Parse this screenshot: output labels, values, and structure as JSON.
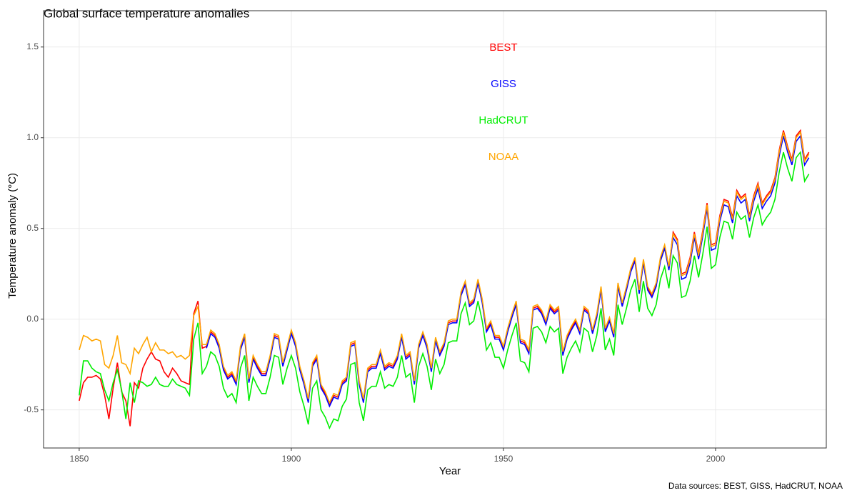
{
  "chart_data": {
    "type": "line",
    "title": "Global surface temperature anomalies",
    "x_label": "Year",
    "y_label": "Temperature anomaly (°C)",
    "caption": "Data sources: BEST, GISS, HadCRUT, NOAA",
    "grid": true,
    "xlim": [
      1841.6,
      2026.1
    ],
    "ylim": [
      -0.71,
      1.7
    ],
    "xticks": [
      1850,
      1900,
      1950,
      2000
    ],
    "yticks": [
      -0.5,
      {
        "value": 0,
        "label": "0.0"
      },
      0.5,
      {
        "value": 1,
        "label": "1.0"
      },
      1.5
    ],
    "x": [
      1850,
      1851,
      1852,
      1853,
      1854,
      1855,
      1856,
      1857,
      1858,
      1859,
      1860,
      1861,
      1862,
      1863,
      1864,
      1865,
      1866,
      1867,
      1868,
      1869,
      1870,
      1871,
      1872,
      1873,
      1874,
      1875,
      1876,
      1877,
      1878,
      1879,
      1880,
      1881,
      1882,
      1883,
      1884,
      1885,
      1886,
      1887,
      1888,
      1889,
      1890,
      1891,
      1892,
      1893,
      1894,
      1895,
      1896,
      1897,
      1898,
      1899,
      1900,
      1901,
      1902,
      1903,
      1904,
      1905,
      1906,
      1907,
      1908,
      1909,
      1910,
      1911,
      1912,
      1913,
      1914,
      1915,
      1916,
      1917,
      1918,
      1919,
      1920,
      1921,
      1922,
      1923,
      1924,
      1925,
      1926,
      1927,
      1928,
      1929,
      1930,
      1931,
      1932,
      1933,
      1934,
      1935,
      1936,
      1937,
      1938,
      1939,
      1940,
      1941,
      1942,
      1943,
      1944,
      1945,
      1946,
      1947,
      1948,
      1949,
      1950,
      1951,
      1952,
      1953,
      1954,
      1955,
      1956,
      1957,
      1958,
      1959,
      1960,
      1961,
      1962,
      1963,
      1964,
      1965,
      1966,
      1967,
      1968,
      1969,
      1970,
      1971,
      1972,
      1973,
      1974,
      1975,
      1976,
      1977,
      1978,
      1979,
      1980,
      1981,
      1982,
      1983,
      1984,
      1985,
      1986,
      1987,
      1988,
      1989,
      1990,
      1991,
      1992,
      1993,
      1994,
      1995,
      1996,
      1997,
      1998,
      1999,
      2000,
      2001,
      2002,
      2003,
      2004,
      2005,
      2006,
      2007,
      2008,
      2009,
      2010,
      2011,
      2012,
      2013,
      2014,
      2015,
      2016,
      2017,
      2018,
      2019,
      2020,
      2021,
      2022
    ],
    "series": [
      {
        "name": "BEST",
        "color": "#ff0000",
        "values": [
          -0.45,
          -0.35,
          -0.32,
          -0.32,
          -0.31,
          -0.33,
          -0.42,
          -0.55,
          -0.38,
          -0.24,
          -0.4,
          -0.45,
          -0.59,
          -0.35,
          -0.38,
          -0.27,
          -0.22,
          -0.18,
          -0.22,
          -0.23,
          -0.29,
          -0.32,
          -0.27,
          -0.3,
          -0.34,
          -0.35,
          -0.36,
          0.03,
          0.1,
          -0.16,
          -0.15,
          -0.07,
          -0.09,
          -0.15,
          -0.27,
          -0.32,
          -0.3,
          -0.35,
          -0.16,
          -0.09,
          -0.34,
          -0.21,
          -0.26,
          -0.3,
          -0.3,
          -0.21,
          -0.09,
          -0.1,
          -0.25,
          -0.16,
          -0.07,
          -0.14,
          -0.27,
          -0.35,
          -0.45,
          -0.25,
          -0.21,
          -0.37,
          -0.41,
          -0.47,
          -0.42,
          -0.43,
          -0.35,
          -0.33,
          -0.14,
          -0.13,
          -0.35,
          -0.45,
          -0.28,
          -0.26,
          -0.26,
          -0.18,
          -0.27,
          -0.25,
          -0.26,
          -0.21,
          -0.09,
          -0.21,
          -0.19,
          -0.35,
          -0.15,
          -0.08,
          -0.15,
          -0.28,
          -0.11,
          -0.19,
          -0.14,
          -0.02,
          -0.01,
          -0.01,
          0.14,
          0.2,
          0.08,
          0.1,
          0.21,
          0.1,
          -0.06,
          -0.02,
          -0.1,
          -0.1,
          -0.16,
          -0.06,
          0.02,
          0.09,
          -0.12,
          -0.13,
          -0.18,
          0.06,
          0.07,
          0.04,
          -0.02,
          0.07,
          0.04,
          0.06,
          -0.19,
          -0.1,
          -0.05,
          -0.01,
          -0.07,
          0.06,
          0.04,
          -0.07,
          0.02,
          0.17,
          -0.06,
          0.0,
          -0.09,
          0.19,
          0.08,
          0.17,
          0.27,
          0.33,
          0.15,
          0.32,
          0.17,
          0.13,
          0.19,
          0.33,
          0.4,
          0.28,
          0.48,
          0.44,
          0.25,
          0.26,
          0.34,
          0.48,
          0.36,
          0.49,
          0.64,
          0.41,
          0.42,
          0.57,
          0.66,
          0.65,
          0.56,
          0.71,
          0.67,
          0.69,
          0.57,
          0.68,
          0.75,
          0.64,
          0.68,
          0.71,
          0.78,
          0.93,
          1.04,
          0.95,
          0.88,
          1.01,
          1.04,
          0.88,
          0.92
        ]
      },
      {
        "name": "GISS",
        "color": "#0000ff",
        "values": [
          null,
          null,
          null,
          null,
          null,
          null,
          null,
          null,
          null,
          null,
          null,
          null,
          null,
          null,
          null,
          null,
          null,
          null,
          null,
          null,
          null,
          null,
          null,
          null,
          null,
          null,
          null,
          null,
          null,
          null,
          -0.16,
          -0.08,
          -0.1,
          -0.16,
          -0.28,
          -0.33,
          -0.31,
          -0.36,
          -0.17,
          -0.1,
          -0.35,
          -0.22,
          -0.27,
          -0.31,
          -0.31,
          -0.22,
          -0.1,
          -0.11,
          -0.26,
          -0.17,
          -0.08,
          -0.15,
          -0.28,
          -0.36,
          -0.46,
          -0.26,
          -0.22,
          -0.38,
          -0.42,
          -0.48,
          -0.43,
          -0.44,
          -0.36,
          -0.34,
          -0.15,
          -0.14,
          -0.36,
          -0.46,
          -0.29,
          -0.27,
          -0.27,
          -0.19,
          -0.28,
          -0.26,
          -0.27,
          -0.22,
          -0.1,
          -0.22,
          -0.2,
          -0.36,
          -0.16,
          -0.09,
          -0.16,
          -0.29,
          -0.12,
          -0.2,
          -0.15,
          -0.03,
          -0.02,
          -0.02,
          0.13,
          0.19,
          0.07,
          0.09,
          0.2,
          0.09,
          -0.07,
          -0.03,
          -0.11,
          -0.11,
          -0.17,
          -0.07,
          0.01,
          0.08,
          -0.13,
          -0.14,
          -0.19,
          0.05,
          0.06,
          0.03,
          -0.03,
          0.06,
          0.03,
          0.05,
          -0.2,
          -0.11,
          -0.06,
          -0.02,
          -0.08,
          0.05,
          0.03,
          -0.08,
          0.01,
          0.16,
          -0.07,
          -0.01,
          -0.1,
          0.18,
          0.07,
          0.16,
          0.26,
          0.32,
          0.14,
          0.31,
          0.16,
          0.12,
          0.18,
          0.32,
          0.39,
          0.27,
          0.45,
          0.41,
          0.22,
          0.23,
          0.31,
          0.45,
          0.33,
          0.46,
          0.61,
          0.38,
          0.39,
          0.54,
          0.63,
          0.62,
          0.53,
          0.68,
          0.64,
          0.66,
          0.54,
          0.65,
          0.72,
          0.61,
          0.65,
          0.68,
          0.75,
          0.9,
          1.01,
          0.92,
          0.85,
          0.98,
          1.01,
          0.85,
          0.89
        ]
      },
      {
        "name": "HadCRUT",
        "color": "#00ee00",
        "values": [
          -0.42,
          -0.23,
          -0.23,
          -0.27,
          -0.29,
          -0.3,
          -0.39,
          -0.45,
          -0.35,
          -0.28,
          -0.39,
          -0.55,
          -0.35,
          -0.46,
          -0.34,
          -0.35,
          -0.37,
          -0.36,
          -0.32,
          -0.36,
          -0.37,
          -0.37,
          -0.33,
          -0.36,
          -0.37,
          -0.38,
          -0.42,
          -0.11,
          -0.02,
          -0.3,
          -0.26,
          -0.18,
          -0.2,
          -0.26,
          -0.38,
          -0.43,
          -0.41,
          -0.46,
          -0.27,
          -0.2,
          -0.45,
          -0.32,
          -0.37,
          -0.41,
          -0.41,
          -0.32,
          -0.2,
          -0.21,
          -0.36,
          -0.27,
          -0.2,
          -0.27,
          -0.4,
          -0.48,
          -0.58,
          -0.38,
          -0.34,
          -0.5,
          -0.54,
          -0.6,
          -0.55,
          -0.56,
          -0.48,
          -0.44,
          -0.25,
          -0.24,
          -0.46,
          -0.56,
          -0.39,
          -0.37,
          -0.37,
          -0.29,
          -0.38,
          -0.36,
          -0.37,
          -0.32,
          -0.2,
          -0.32,
          -0.3,
          -0.46,
          -0.26,
          -0.19,
          -0.26,
          -0.39,
          -0.22,
          -0.3,
          -0.25,
          -0.13,
          -0.12,
          -0.12,
          0.03,
          0.09,
          -0.03,
          -0.01,
          0.1,
          -0.01,
          -0.17,
          -0.13,
          -0.21,
          -0.21,
          -0.27,
          -0.17,
          -0.09,
          -0.02,
          -0.23,
          -0.24,
          -0.29,
          -0.05,
          -0.04,
          -0.07,
          -0.13,
          -0.04,
          -0.07,
          -0.05,
          -0.3,
          -0.21,
          -0.16,
          -0.12,
          -0.18,
          -0.05,
          -0.07,
          -0.18,
          -0.09,
          0.06,
          -0.17,
          -0.11,
          -0.2,
          0.08,
          -0.03,
          0.06,
          0.16,
          0.22,
          0.04,
          0.21,
          0.06,
          0.02,
          0.08,
          0.22,
          0.29,
          0.17,
          0.35,
          0.31,
          0.12,
          0.13,
          0.21,
          0.35,
          0.23,
          0.36,
          0.51,
          0.28,
          0.3,
          0.45,
          0.54,
          0.53,
          0.44,
          0.59,
          0.55,
          0.57,
          0.45,
          0.56,
          0.63,
          0.52,
          0.56,
          0.59,
          0.66,
          0.81,
          0.92,
          0.83,
          0.76,
          0.89,
          0.92,
          0.76,
          0.8
        ]
      },
      {
        "name": "NOAA",
        "color": "#ffa500",
        "values": [
          -0.17,
          -0.09,
          -0.1,
          -0.12,
          -0.11,
          -0.12,
          -0.25,
          -0.27,
          -0.2,
          -0.09,
          -0.24,
          -0.25,
          -0.3,
          -0.16,
          -0.19,
          -0.14,
          -0.1,
          -0.18,
          -0.13,
          -0.17,
          -0.17,
          -0.19,
          -0.18,
          -0.21,
          -0.2,
          -0.22,
          -0.2,
          0.02,
          0.07,
          -0.14,
          -0.14,
          -0.06,
          -0.08,
          -0.14,
          -0.26,
          -0.31,
          -0.29,
          -0.34,
          -0.15,
          -0.08,
          -0.33,
          -0.2,
          -0.25,
          -0.29,
          -0.29,
          -0.2,
          -0.08,
          -0.09,
          -0.24,
          -0.15,
          -0.06,
          -0.13,
          -0.26,
          -0.34,
          -0.44,
          -0.24,
          -0.2,
          -0.36,
          -0.4,
          -0.46,
          -0.41,
          -0.42,
          -0.34,
          -0.32,
          -0.13,
          -0.12,
          -0.34,
          -0.44,
          -0.27,
          -0.25,
          -0.25,
          -0.17,
          -0.26,
          -0.24,
          -0.25,
          -0.2,
          -0.08,
          -0.2,
          -0.18,
          -0.34,
          -0.14,
          -0.07,
          -0.14,
          -0.27,
          -0.1,
          -0.18,
          -0.13,
          -0.01,
          0.0,
          0.0,
          0.15,
          0.21,
          0.09,
          0.11,
          0.22,
          0.11,
          -0.05,
          -0.01,
          -0.09,
          -0.09,
          -0.15,
          -0.05,
          0.03,
          0.1,
          -0.11,
          -0.12,
          -0.17,
          0.07,
          0.08,
          0.05,
          -0.01,
          0.08,
          0.05,
          0.07,
          -0.18,
          -0.09,
          -0.04,
          0.0,
          -0.06,
          0.07,
          0.05,
          -0.06,
          0.03,
          0.18,
          -0.05,
          0.01,
          -0.08,
          0.2,
          0.09,
          0.18,
          0.28,
          0.34,
          0.16,
          0.33,
          0.18,
          0.14,
          0.2,
          0.34,
          0.41,
          0.29,
          0.47,
          0.43,
          0.24,
          0.25,
          0.33,
          0.47,
          0.35,
          0.48,
          0.63,
          0.4,
          0.41,
          0.56,
          0.65,
          0.64,
          0.55,
          0.7,
          0.66,
          0.68,
          0.56,
          0.67,
          0.74,
          0.63,
          0.67,
          0.7,
          0.77,
          0.92,
          1.03,
          0.94,
          0.87,
          1.0,
          1.03,
          0.87,
          0.91
        ]
      }
    ]
  }
}
